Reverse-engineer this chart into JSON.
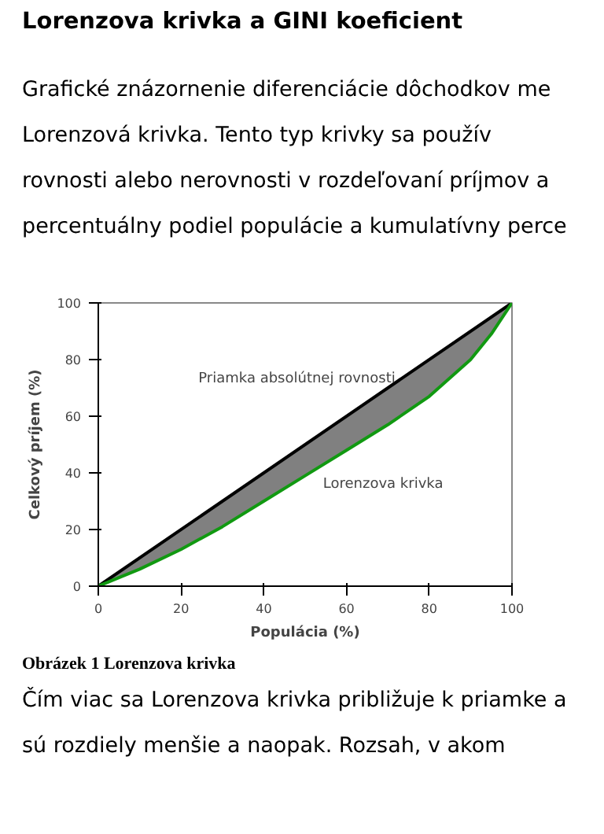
{
  "chart_data": {
    "type": "line",
    "title": "Lorenzova krivka a GINI koeficient",
    "xlabel": "Populácia (%)",
    "ylabel": "Celkový príjem (%)",
    "xlim": [
      0,
      100
    ],
    "ylim": [
      0,
      100
    ],
    "xticks": [
      0,
      20,
      40,
      60,
      80,
      100
    ],
    "yticks": [
      0,
      20,
      40,
      60,
      80,
      100
    ],
    "grid": false,
    "marker": "none",
    "line_style": "solid",
    "series": [
      {
        "name": "Priamka absolútnej rovnosti",
        "color": "#000000",
        "x": [
          0,
          100
        ],
        "values": [
          0,
          100
        ]
      },
      {
        "name": "Lorenzova krivka",
        "color": "#119911",
        "x": [
          0,
          5,
          10,
          20,
          30,
          40,
          50,
          60,
          70,
          80,
          90,
          95,
          100
        ],
        "values": [
          0,
          3,
          6,
          13,
          21,
          30,
          39,
          48,
          57,
          67,
          80,
          89,
          100
        ],
        "lower": [
          0,
          3,
          6,
          13,
          21,
          30,
          39,
          48,
          57,
          67,
          80,
          89,
          100
        ],
        "upper": [
          0,
          5,
          10,
          20,
          30,
          40,
          50,
          60,
          70,
          80,
          90,
          95,
          100
        ]
      }
    ],
    "annotations": [
      "Grafické znázornenie diferenciácie dôchodkov me",
      "Lorenzová krivka. Tento typ krivky sa použív",
      "rovnosti alebo nerovnosti v rozdeľovaní príjmov a",
      "percentuálny podiel populácie a kumulatívny perce",
      "Obrázek 1 Lorenzova krivka",
      "Čím viac sa Lorenzova krivka približuje k priamke a",
      "sú rozdiely menšie a naopak. Rozsah, v akom"
    ]
  }
}
